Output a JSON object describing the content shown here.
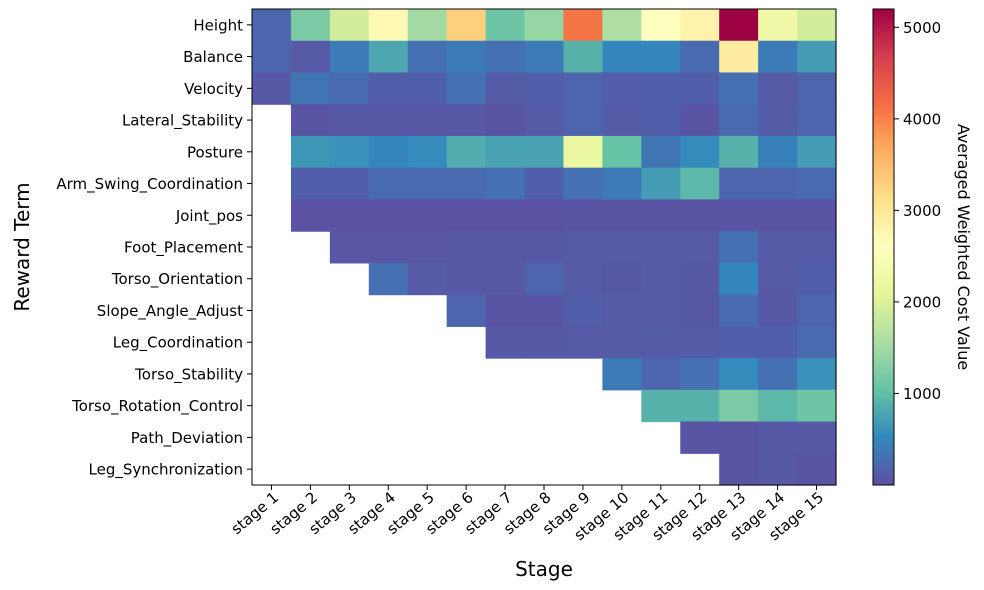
{
  "chart_data": {
    "type": "heatmap",
    "xlabel": "Stage",
    "ylabel": "Reward Term",
    "colorbar_label": "Averaged Weighted Cost Value",
    "colormap": "Spectral_r",
    "vmin": 0,
    "vmax": 5200,
    "colorbar_ticks": [
      1000,
      2000,
      3000,
      4000,
      5000
    ],
    "x_categories": [
      "stage 1",
      "stage 2",
      "stage 3",
      "stage 4",
      "stage 5",
      "stage 6",
      "stage 7",
      "stage 8",
      "stage 9",
      "stage 10",
      "stage 11",
      "stage 12",
      "stage 13",
      "stage 14",
      "stage 15"
    ],
    "y_categories": [
      "Height",
      "Balance",
      "Velocity",
      "Lateral_Stability",
      "Posture",
      "Arm_Swing_Coordination",
      "Joint_pos",
      "Foot_Placement",
      "Torso_Orientation",
      "Slope_Angle_Adjust",
      "Leg_Coordination",
      "Torso_Stability",
      "Torso_Rotation_Control",
      "Path_Deviation",
      "Leg_Synchronization"
    ],
    "values": [
      [
        200,
        1200,
        1900,
        2700,
        1500,
        3300,
        1100,
        1400,
        4100,
        1600,
        2600,
        2800,
        5200,
        2300,
        1900
      ],
      [
        200,
        100,
        400,
        800,
        300,
        400,
        300,
        400,
        900,
        500,
        500,
        250,
        2900,
        400,
        700
      ],
      [
        80,
        350,
        250,
        150,
        150,
        300,
        120,
        150,
        200,
        140,
        150,
        150,
        300,
        100,
        200
      ],
      [
        null,
        50,
        80,
        80,
        80,
        80,
        50,
        100,
        200,
        120,
        150,
        50,
        250,
        120,
        200
      ],
      [
        null,
        650,
        600,
        500,
        550,
        850,
        750,
        750,
        2200,
        1050,
        350,
        550,
        900,
        450,
        700
      ],
      [
        null,
        150,
        150,
        250,
        250,
        250,
        300,
        150,
        300,
        400,
        700,
        950,
        200,
        200,
        250
      ],
      [
        null,
        30,
        30,
        30,
        30,
        30,
        30,
        30,
        50,
        50,
        50,
        50,
        50,
        50,
        50
      ],
      [
        null,
        null,
        60,
        60,
        60,
        80,
        80,
        80,
        100,
        100,
        100,
        100,
        300,
        100,
        100
      ],
      [
        null,
        null,
        null,
        300,
        100,
        80,
        80,
        200,
        100,
        80,
        100,
        80,
        500,
        100,
        150
      ],
      [
        null,
        null,
        null,
        null,
        null,
        200,
        50,
        50,
        150,
        120,
        100,
        80,
        250,
        80,
        200
      ],
      [
        null,
        null,
        null,
        null,
        null,
        null,
        80,
        80,
        100,
        100,
        120,
        120,
        150,
        150,
        250
      ],
      [
        null,
        null,
        null,
        null,
        null,
        null,
        null,
        null,
        null,
        400,
        200,
        300,
        550,
        300,
        600
      ],
      [
        null,
        null,
        null,
        null,
        null,
        null,
        null,
        null,
        null,
        null,
        900,
        900,
        1200,
        950,
        1100
      ],
      [
        null,
        null,
        null,
        null,
        null,
        null,
        null,
        null,
        null,
        null,
        null,
        50,
        50,
        80,
        80
      ],
      [
        null,
        null,
        null,
        null,
        null,
        null,
        null,
        null,
        null,
        null,
        null,
        null,
        50,
        80,
        50
      ]
    ]
  }
}
